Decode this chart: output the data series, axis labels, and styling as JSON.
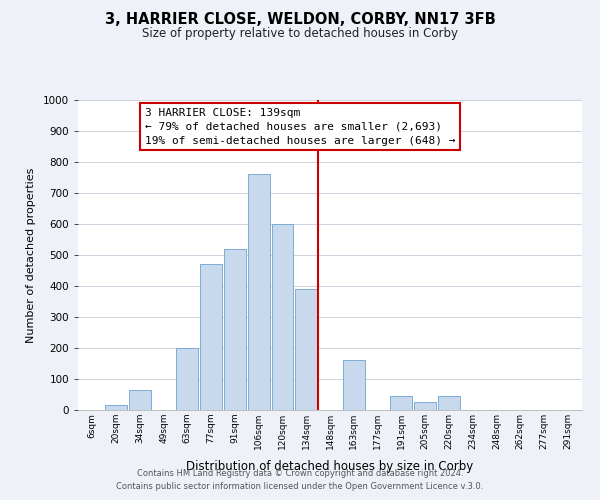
{
  "title": "3, HARRIER CLOSE, WELDON, CORBY, NN17 3FB",
  "subtitle": "Size of property relative to detached houses in Corby",
  "xlabel": "Distribution of detached houses by size in Corby",
  "ylabel": "Number of detached properties",
  "bar_labels": [
    "6sqm",
    "20sqm",
    "34sqm",
    "49sqm",
    "63sqm",
    "77sqm",
    "91sqm",
    "106sqm",
    "120sqm",
    "134sqm",
    "148sqm",
    "163sqm",
    "177sqm",
    "191sqm",
    "205sqm",
    "220sqm",
    "234sqm",
    "248sqm",
    "262sqm",
    "277sqm",
    "291sqm"
  ],
  "bar_heights": [
    0,
    15,
    65,
    0,
    200,
    470,
    520,
    760,
    600,
    390,
    0,
    160,
    0,
    45,
    25,
    45,
    0,
    0,
    0,
    0,
    0
  ],
  "bar_color": "#c8d9ee",
  "bar_edge_color": "#7aadd4",
  "marker_color": "#cc0000",
  "annotation_title": "3 HARRIER CLOSE: 139sqm",
  "annotation_line1": "← 79% of detached houses are smaller (2,693)",
  "annotation_line2": "19% of semi-detached houses are larger (648) →",
  "annotation_box_color": "#cc0000",
  "ylim": [
    0,
    1000
  ],
  "yticks": [
    0,
    100,
    200,
    300,
    400,
    500,
    600,
    700,
    800,
    900,
    1000
  ],
  "footer1": "Contains HM Land Registry data © Crown copyright and database right 2024.",
  "footer2": "Contains public sector information licensed under the Open Government Licence v.3.0.",
  "bg_color": "#eef2f8",
  "plot_bg_color": "#ffffff",
  "grid_color": "#ccd4e0"
}
